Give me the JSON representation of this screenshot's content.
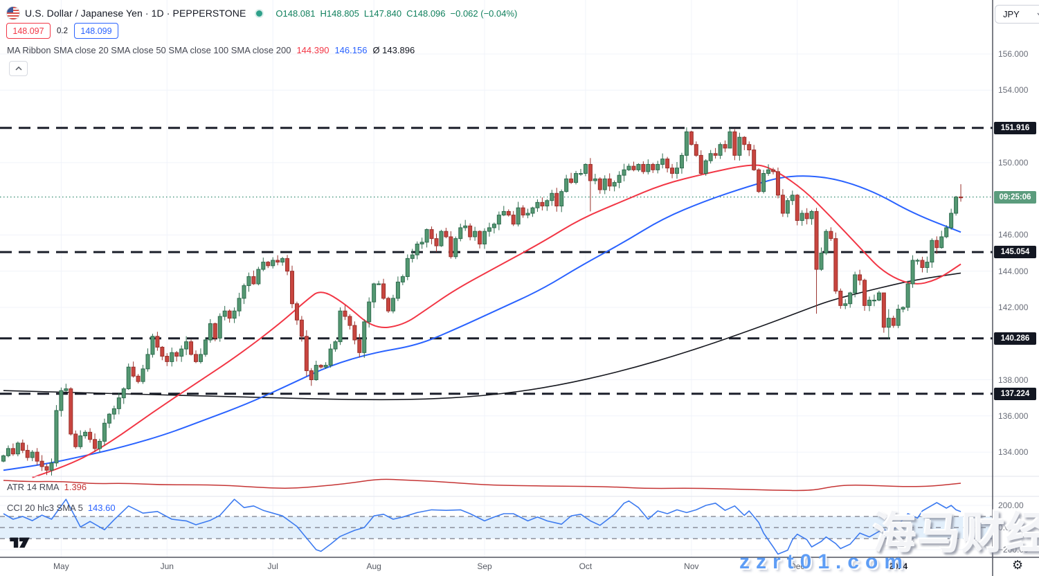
{
  "header": {
    "title": "U.S. Dollar / Japanese Yen · 1D · PEPPERSTONE",
    "ohlc": {
      "o": "O148.081",
      "h": "H148.805",
      "l": "L147.840",
      "c": "C148.096",
      "change": "−0.062 (−0.04%)"
    },
    "bid": "148.097",
    "spread": "0.2",
    "ask": "148.099",
    "currency_button": "JPY"
  },
  "legend": {
    "ma_ribbon": {
      "title": "MA Ribbon SMA close 20 SMA close 50 SMA close 100 SMA close 200",
      "v20": "144.390",
      "v50": "146.156",
      "avg": "Ø 143.896"
    },
    "atr": {
      "title": "ATR 14 RMA",
      "value": "1.396"
    },
    "cci": {
      "title": "CCI 20 hlc3 SMA 5",
      "value": "143.60"
    }
  },
  "watermark": {
    "line1": "海马财经",
    "line2": "zzrt01.com"
  },
  "price_axis": {
    "ticks": [
      {
        "label": "156.000",
        "price": 156
      },
      {
        "label": "154.000",
        "price": 154
      },
      {
        "label": "150.000",
        "price": 150
      },
      {
        "label": "146.000",
        "price": 146
      },
      {
        "label": "144.000",
        "price": 144
      },
      {
        "label": "142.000",
        "price": 142
      },
      {
        "label": "138.000",
        "price": 138
      },
      {
        "label": "136.000",
        "price": 136
      },
      {
        "label": "134.000",
        "price": 134
      }
    ],
    "level_badges": [
      {
        "label": "151.916",
        "price": 151.916
      },
      {
        "label": "145.054",
        "price": 145.054
      },
      {
        "label": "140.286",
        "price": 140.286
      },
      {
        "label": "137.224",
        "price": 137.224
      }
    ],
    "countdown": {
      "label": "09:25:06",
      "price": 148.096
    }
  },
  "cci_axis": [
    {
      "label": "200.00",
      "value": 200
    },
    {
      "label": "0.00",
      "value": 0
    },
    {
      "label": "−200.00",
      "value": -200
    }
  ],
  "time_axis": {
    "months": [
      {
        "label": "May",
        "index": 12
      },
      {
        "label": "Jun",
        "index": 34
      },
      {
        "label": "Jul",
        "index": 56
      },
      {
        "label": "Aug",
        "index": 77
      },
      {
        "label": "Sep",
        "index": 100
      },
      {
        "label": "Oct",
        "index": 121
      },
      {
        "label": "Nov",
        "index": 143
      },
      {
        "label": "Dec",
        "index": 165
      },
      {
        "label": "2024",
        "index": 186,
        "year": true
      }
    ]
  },
  "colors": {
    "up_fill": "#549872",
    "up_border": "#2e6b4e",
    "down_fill": "#c8453f",
    "down_border": "#99312c",
    "ma_fast": "#f23645",
    "ma_mid": "#2962ff",
    "ma_slow": "#16181f",
    "level_line": "#1b1f2a",
    "current_line": "#3f9178",
    "countdown_badge": "#5b9c7d",
    "level_badge": "#131722",
    "atr_line": "#c53434",
    "cci_line": "#3d7bf0",
    "cci_band": "#e2effb",
    "guide_dash": "#787b86",
    "grid": "#f0f3fa",
    "separator": "#e0e3eb",
    "axis_border": "#50535e",
    "ohlc_text": "#10805d"
  },
  "chart_data": {
    "type": "candlestick",
    "symbol": "USDJPY",
    "interval": "1D",
    "broker": "PEPPERSTONE",
    "title": "U.S. Dollar / Japanese Yen",
    "last": {
      "open": 148.081,
      "high": 148.805,
      "low": 147.84,
      "close": 148.096,
      "change": -0.062,
      "change_pct": -0.04
    },
    "current_price": 148.096,
    "horizontal_levels": [
      151.916,
      145.054,
      140.286,
      137.224
    ],
    "y_axis_range": [
      132.5,
      157.5
    ],
    "closes": [
      133.8,
      134.2,
      133.9,
      134.5,
      134.1,
      133.7,
      134.0,
      133.5,
      133.2,
      133.0,
      133.4,
      136.3,
      137.4,
      137.5,
      135.0,
      134.3,
      134.9,
      135.1,
      134.7,
      134.2,
      134.6,
      135.6,
      136.1,
      136.4,
      137.0,
      137.5,
      138.7,
      138.2,
      137.9,
      138.6,
      139.4,
      140.4,
      139.8,
      139.3,
      139.0,
      139.5,
      139.3,
      139.7,
      140.1,
      139.4,
      139.0,
      139.4,
      140.2,
      141.1,
      140.3,
      141.5,
      141.8,
      141.4,
      141.8,
      142.5,
      143.2,
      143.7,
      143.3,
      144.1,
      144.5,
      144.3,
      144.6,
      144.5,
      144.7,
      144.0,
      142.2,
      141.3,
      140.4,
      138.5,
      138.0,
      138.8,
      138.7,
      138.8,
      139.7,
      140.1,
      141.8,
      141.5,
      141.0,
      140.2,
      139.5,
      141.2,
      142.3,
      143.3,
      143.3,
      142.5,
      141.8,
      142.5,
      143.4,
      143.7,
      144.7,
      144.9,
      145.5,
      145.6,
      146.3,
      145.8,
      145.4,
      146.2,
      145.9,
      144.8,
      145.8,
      146.4,
      146.5,
      145.9,
      146.2,
      145.5,
      146.2,
      146.4,
      146.6,
      147.1,
      147.3,
      147.1,
      146.6,
      147.5,
      147.1,
      147.2,
      147.5,
      147.8,
      147.6,
      147.9,
      148.3,
      147.6,
      148.4,
      149.1,
      148.9,
      149.4,
      149.4,
      149.9,
      149.0,
      149.1,
      148.5,
      149.1,
      148.7,
      148.9,
      149.3,
      149.6,
      149.8,
      149.6,
      149.9,
      149.5,
      149.9,
      149.6,
      149.9,
      150.2,
      149.7,
      149.4,
      149.7,
      150.4,
      151.7,
      151.0,
      150.4,
      149.4,
      150.1,
      150.5,
      150.4,
      151.0,
      150.8,
      151.7,
      150.4,
      151.4,
      151.0,
      150.7,
      149.6,
      148.4,
      149.4,
      149.6,
      149.5,
      148.2,
      147.2,
      147.9,
      148.2,
      146.8,
      147.2,
      146.9,
      147.3,
      144.1,
      145.0,
      146.2,
      145.8,
      142.9,
      142.1,
      142.2,
      142.8,
      143.8,
      143.5,
      142.1,
      142.4,
      142.4,
      142.8,
      140.9,
      141.4,
      141.0,
      141.9,
      142.0,
      143.3,
      144.6,
      144.6,
      144.2,
      144.5,
      145.7,
      145.3,
      145.9,
      146.4,
      147.2,
      148.1,
      148.096
    ],
    "wick_overrides": {
      "11": [
        136.6,
        133.2
      ],
      "122": [
        150.25,
        147.3
      ],
      "151": [
        151.91,
        150.8
      ],
      "169": [
        147.5,
        141.65
      ],
      "183": [
        141.5,
        140.6
      ],
      "184": [
        141.9,
        140.25
      ],
      "199": [
        148.805,
        147.84
      ]
    },
    "ma_lines": [
      {
        "name": "SMA fast",
        "color": "#f23645",
        "last": 144.39,
        "points": [
          [
            6,
            132.6
          ],
          [
            14,
            133.3
          ],
          [
            22,
            134.5
          ],
          [
            31,
            136.2
          ],
          [
            40,
            137.8
          ],
          [
            48,
            139.2
          ],
          [
            57,
            141.0
          ],
          [
            63,
            142.4
          ],
          [
            66,
            143.0
          ],
          [
            71,
            142.2
          ],
          [
            77,
            140.8
          ],
          [
            83,
            141.0
          ],
          [
            88,
            141.9
          ],
          [
            94,
            143.0
          ],
          [
            103,
            144.3
          ],
          [
            112,
            145.6
          ],
          [
            120,
            146.9
          ],
          [
            129,
            147.9
          ],
          [
            137,
            148.8
          ],
          [
            146,
            149.4
          ],
          [
            155,
            149.9
          ],
          [
            159,
            149.8
          ],
          [
            166,
            148.6
          ],
          [
            172,
            147.0
          ],
          [
            178,
            145.3
          ],
          [
            183,
            143.9
          ],
          [
            189,
            143.2
          ],
          [
            194,
            143.5
          ],
          [
            199,
            144.39
          ]
        ]
      },
      {
        "name": "SMA mid",
        "color": "#2962ff",
        "last": 146.156,
        "points": [
          [
            0,
            133.0
          ],
          [
            8,
            133.3
          ],
          [
            17,
            133.8
          ],
          [
            25,
            134.3
          ],
          [
            34,
            135.0
          ],
          [
            42,
            135.8
          ],
          [
            51,
            136.7
          ],
          [
            60,
            137.8
          ],
          [
            68,
            138.8
          ],
          [
            77,
            139.5
          ],
          [
            86,
            139.9
          ],
          [
            94,
            140.8
          ],
          [
            103,
            141.9
          ],
          [
            112,
            143.0
          ],
          [
            120,
            144.3
          ],
          [
            129,
            145.6
          ],
          [
            137,
            146.9
          ],
          [
            146,
            147.9
          ],
          [
            155,
            148.7
          ],
          [
            163,
            149.3
          ],
          [
            172,
            149.2
          ],
          [
            181,
            148.4
          ],
          [
            189,
            147.2
          ],
          [
            199,
            146.156
          ]
        ]
      },
      {
        "name": "SMA slow",
        "color": "#16181f",
        "last": 143.896,
        "points": [
          [
            0,
            137.4
          ],
          [
            14,
            137.3
          ],
          [
            28,
            137.2
          ],
          [
            42,
            137.1
          ],
          [
            57,
            137.0
          ],
          [
            71,
            136.9
          ],
          [
            86,
            136.9
          ],
          [
            100,
            137.1
          ],
          [
            114,
            137.6
          ],
          [
            129,
            138.5
          ],
          [
            143,
            139.6
          ],
          [
            157,
            140.9
          ],
          [
            166,
            141.8
          ],
          [
            172,
            142.4
          ],
          [
            181,
            143.0
          ],
          [
            189,
            143.5
          ],
          [
            199,
            143.896
          ]
        ]
      }
    ],
    "atr": {
      "name": "ATR 14 RMA",
      "last": 1.396,
      "points": [
        [
          0,
          1.52
        ],
        [
          5,
          1.46
        ],
        [
          12,
          1.48
        ],
        [
          19,
          1.37
        ],
        [
          25,
          1.4
        ],
        [
          33,
          1.33
        ],
        [
          41,
          1.33
        ],
        [
          47,
          1.3
        ],
        [
          54,
          1.21
        ],
        [
          60,
          1.17
        ],
        [
          67,
          1.29
        ],
        [
          72,
          1.4
        ],
        [
          78,
          1.58
        ],
        [
          83,
          1.54
        ],
        [
          91,
          1.46
        ],
        [
          100,
          1.33
        ],
        [
          108,
          1.29
        ],
        [
          117,
          1.27
        ],
        [
          126,
          1.25
        ],
        [
          134,
          1.17
        ],
        [
          143,
          1.19
        ],
        [
          152,
          1.15
        ],
        [
          160,
          1.1
        ],
        [
          168,
          1.08
        ],
        [
          172,
          1.25
        ],
        [
          176,
          1.33
        ],
        [
          182,
          1.29
        ],
        [
          188,
          1.25
        ],
        [
          193,
          1.27
        ],
        [
          199,
          1.396
        ]
      ]
    },
    "cci": {
      "name": "CCI 20 hlc3 SMA 5",
      "last": 143.6,
      "guides": [
        100,
        0,
        -100
      ],
      "outer": [
        200,
        -200
      ],
      "points": [
        [
          0,
          125
        ],
        [
          2,
          75
        ],
        [
          4,
          100
        ],
        [
          6,
          62
        ],
        [
          8,
          112
        ],
        [
          10,
          75
        ],
        [
          13,
          255
        ],
        [
          16,
          5
        ],
        [
          18,
          55
        ],
        [
          21,
          -20
        ],
        [
          23,
          70
        ],
        [
          26,
          195
        ],
        [
          29,
          130
        ],
        [
          32,
          145
        ],
        [
          35,
          75
        ],
        [
          38,
          60
        ],
        [
          40,
          25
        ],
        [
          43,
          65
        ],
        [
          45,
          110
        ],
        [
          48,
          255
        ],
        [
          50,
          180
        ],
        [
          52,
          195
        ],
        [
          54,
          155
        ],
        [
          56,
          130
        ],
        [
          58,
          105
        ],
        [
          61,
          10
        ],
        [
          65,
          -200
        ],
        [
          66,
          -215
        ],
        [
          68,
          -150
        ],
        [
          70,
          -80
        ],
        [
          73,
          -25
        ],
        [
          75,
          0
        ],
        [
          77,
          105
        ],
        [
          79,
          120
        ],
        [
          81,
          75
        ],
        [
          83,
          95
        ],
        [
          86,
          135
        ],
        [
          89,
          160
        ],
        [
          92,
          155
        ],
        [
          95,
          160
        ],
        [
          97,
          125
        ],
        [
          100,
          60
        ],
        [
          102,
          95
        ],
        [
          104,
          125
        ],
        [
          106,
          125
        ],
        [
          109,
          60
        ],
        [
          111,
          95
        ],
        [
          113,
          60
        ],
        [
          116,
          30
        ],
        [
          118,
          105
        ],
        [
          120,
          120
        ],
        [
          122,
          60
        ],
        [
          124,
          20
        ],
        [
          127,
          120
        ],
        [
          129,
          220
        ],
        [
          130,
          240
        ],
        [
          132,
          180
        ],
        [
          134,
          75
        ],
        [
          136,
          150
        ],
        [
          138,
          125
        ],
        [
          140,
          160
        ],
        [
          142,
          135
        ],
        [
          144,
          160
        ],
        [
          146,
          200
        ],
        [
          148,
          220
        ],
        [
          150,
          155
        ],
        [
          152,
          195
        ],
        [
          154,
          110
        ],
        [
          155,
          150
        ],
        [
          157,
          45
        ],
        [
          158,
          -50
        ],
        [
          160,
          -175
        ],
        [
          161,
          -240
        ],
        [
          163,
          -205
        ],
        [
          164,
          -110
        ],
        [
          165,
          -60
        ],
        [
          167,
          -110
        ],
        [
          168,
          -175
        ],
        [
          170,
          -125
        ],
        [
          171,
          -85
        ],
        [
          173,
          -145
        ],
        [
          174,
          -190
        ],
        [
          176,
          -150
        ],
        [
          177,
          -100
        ],
        [
          178,
          -50
        ],
        [
          180,
          -85
        ],
        [
          181,
          -60
        ],
        [
          183,
          -10
        ],
        [
          184,
          -60
        ],
        [
          186,
          25
        ],
        [
          187,
          75
        ],
        [
          188,
          125
        ],
        [
          190,
          85
        ],
        [
          191,
          150
        ],
        [
          193,
          200
        ],
        [
          194,
          225
        ],
        [
          196,
          175
        ],
        [
          197,
          200
        ],
        [
          198,
          160
        ],
        [
          199,
          143.6
        ]
      ]
    }
  }
}
